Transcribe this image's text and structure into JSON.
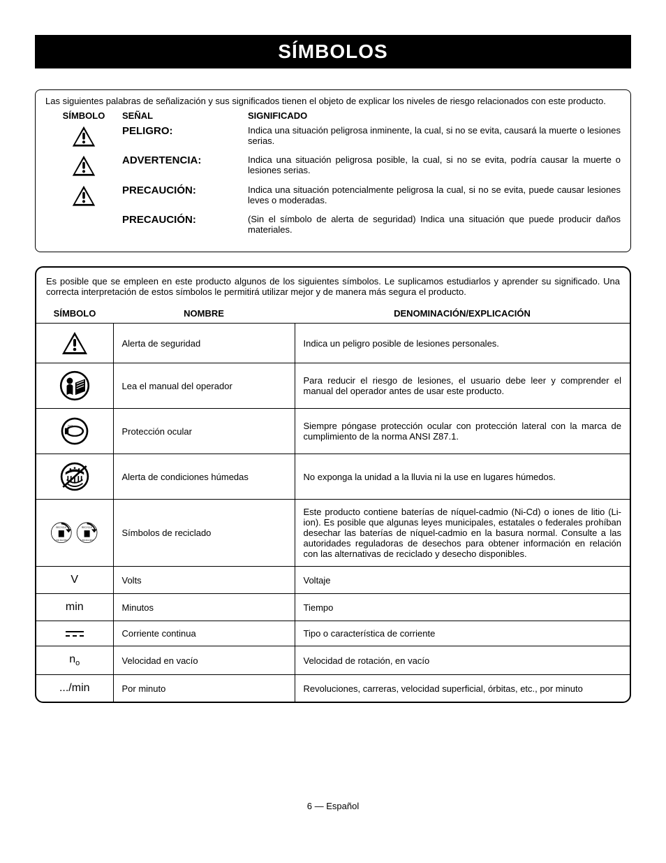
{
  "page": {
    "title": "SÍMBOLOS",
    "footer": "6 — Español"
  },
  "signals": {
    "intro": "Las siguientes palabras de señalización y sus significados tienen el objeto de explicar los niveles de riesgo relacionados con este producto.",
    "headers": {
      "symbol": "SÍMBOLO",
      "signal": "SEÑAL",
      "meaning": "SIGNIFICADO"
    },
    "rows": [
      {
        "has_icon": true,
        "signal": "PELIGRO:",
        "meaning": "Indica una situación peligrosa inminente, la cual, si no se evita, causará la muerte o lesiones serias."
      },
      {
        "has_icon": true,
        "signal": "ADVERTENCIA:",
        "meaning": "Indica una situación peligrosa posible, la cual, si no se evita, podría causar la muerte o lesiones serias."
      },
      {
        "has_icon": true,
        "signal": "PRECAUCIÓN:",
        "meaning": "Indica una situación potencialmente peligrosa la cual, si no se evita, puede causar lesiones leves o moderadas."
      },
      {
        "has_icon": false,
        "signal": "PRECAUCIÓN:",
        "meaning": "(Sin el símbolo de alerta de seguridad) Indica una situación que puede producir daños materiales."
      }
    ]
  },
  "symbols": {
    "intro": "Es posible que se empleen en este producto algunos de los siguientes símbolos. Le suplicamos estudiarlos y aprender su significado. Una correcta interpretación de estos símbolos le permitirá utilizar mejor y de manera más segura el producto.",
    "headers": {
      "symbol": "SÍMBOLO",
      "name": "NOMBRE",
      "desc": "DENOMINACIÓN/EXPLICACIÓN"
    },
    "rows": [
      {
        "icon": "alert",
        "name": "Alerta de seguridad",
        "desc": "Indica un peligro posible de lesiones personales."
      },
      {
        "icon": "manual",
        "name": "Lea el manual del operador",
        "desc": "Para reducir el riesgo de lesiones, el usuario debe leer y comprender el manual del operador antes de usar este producto."
      },
      {
        "icon": "eye",
        "name": "Protección ocular",
        "desc": "Siempre póngase protección ocular con protección lateral con la marca de cumplimiento de la norma ANSI Z87.1."
      },
      {
        "icon": "wet",
        "name": "Alerta de condiciones húmedas",
        "desc": "No exponga la unidad a la lluvia ni la use en lugares húmedos."
      },
      {
        "icon": "recycle",
        "name": "Símbolos de reciclado",
        "desc": "Este producto contiene baterías de níquel-cadmio (Ni-Cd) o iones de litio (Li-ion). Es posible que algunas leyes municipales, estatales o federales prohíban desechar las baterías de níquel-cadmio en la basura normal. Consulte a las autoridades reguladoras de desechos para obtener información en relación con las alternativas de reciclado y desecho disponibles."
      },
      {
        "icon": "V",
        "name": "Volts",
        "desc": "Voltaje"
      },
      {
        "icon": "min",
        "name": "Minutos",
        "desc": "Tiempo"
      },
      {
        "icon": "dc",
        "name": "Corriente continua",
        "desc": "Tipo o característica de corriente"
      },
      {
        "icon": "no",
        "name": "Velocidad en vacío",
        "desc": "Velocidad de rotación, en vacío"
      },
      {
        "icon": "permin",
        "name": "Por minuto",
        "desc": "Revoluciones, carreras, velocidad superficial, órbitas, etc., por minuto"
      }
    ]
  },
  "glyphs": {
    "V": "V",
    "min": "min",
    "permin": ".../min",
    "no_n": "n",
    "no_o": "o"
  }
}
